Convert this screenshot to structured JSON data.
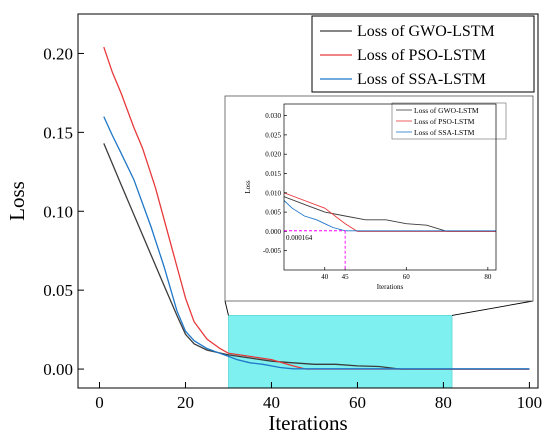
{
  "chart_data": {
    "type": "line",
    "title": "",
    "xlabel": "Iterations",
    "ylabel": "Loss",
    "xlim": [
      -5,
      102
    ],
    "ylim": [
      -0.012,
      0.225
    ],
    "x_ticks": [
      0,
      20,
      40,
      60,
      80,
      100
    ],
    "x_tick_labels": [
      "0",
      "20",
      "40",
      "60",
      "80",
      "100"
    ],
    "y_ticks": [
      0.0,
      0.05,
      0.1,
      0.15,
      0.2
    ],
    "y_tick_labels": [
      "0.00",
      "0.05",
      "0.10",
      "0.15",
      "0.20"
    ],
    "grid": false,
    "legend_position": "top-right",
    "colors": {
      "GWO": "#3c3c3c",
      "PSO": "#e8393b",
      "SSA": "#1f77c8",
      "highlight": "#7ff0f0",
      "annotation": "#ff00ff",
      "annotation_text": "#e0002a"
    },
    "series": [
      {
        "name": "Loss of GWO-LSTM",
        "color": "#3c3c3c",
        "x": [
          1,
          5,
          10,
          15,
          18,
          20,
          22,
          25,
          30,
          35,
          40,
          45,
          50,
          55,
          60,
          65,
          70,
          80,
          90,
          100
        ],
        "y": [
          0.143,
          0.117,
          0.085,
          0.053,
          0.034,
          0.022,
          0.016,
          0.012,
          0.009,
          0.007,
          0.005,
          0.004,
          0.003,
          0.003,
          0.002,
          0.0016,
          0.0,
          0.0,
          0.0,
          0.0
        ]
      },
      {
        "name": "Loss of PSO-LSTM",
        "color": "#e8393b",
        "x": [
          1,
          3,
          5,
          8,
          10,
          13,
          15,
          18,
          20,
          22,
          25,
          28,
          30,
          35,
          40,
          45,
          48,
          55,
          60,
          70,
          80,
          90,
          100
        ],
        "y": [
          0.204,
          0.188,
          0.175,
          0.153,
          0.14,
          0.115,
          0.095,
          0.065,
          0.045,
          0.03,
          0.019,
          0.013,
          0.01,
          0.008,
          0.006,
          0.002,
          0.0,
          0.0,
          0.0,
          0.0,
          0.0,
          0.0,
          0.0
        ]
      },
      {
        "name": "Loss of SSA-LSTM",
        "color": "#1f77c8",
        "x": [
          1,
          3,
          5,
          8,
          10,
          12,
          15,
          18,
          20,
          22,
          25,
          28,
          30,
          32,
          35,
          38,
          40,
          42,
          45,
          50,
          60,
          70,
          80,
          90,
          100
        ],
        "y": [
          0.16,
          0.148,
          0.137,
          0.12,
          0.105,
          0.09,
          0.065,
          0.037,
          0.024,
          0.018,
          0.013,
          0.01,
          0.008,
          0.006,
          0.004,
          0.003,
          0.002,
          0.001,
          0.000164,
          0.000164,
          0.000164,
          0.000164,
          0.000164,
          0.000164,
          0.000164
        ]
      }
    ],
    "highlight_region": {
      "x": [
        30,
        82
      ],
      "y": [
        -0.012,
        0.034
      ]
    },
    "inset": {
      "xlim": [
        30,
        82
      ],
      "ylim": [
        -0.01,
        0.033
      ],
      "x_ticks": [
        40,
        45,
        60,
        80
      ],
      "x_tick_labels": [
        "40",
        "45",
        "60",
        "80"
      ],
      "y_ticks": [
        -0.005,
        0.0,
        0.005,
        0.01,
        0.015,
        0.02,
        0.025,
        0.03
      ],
      "y_tick_labels": [
        "-0.005",
        "0.000",
        "0.005",
        "0.010",
        "0.015",
        "0.020",
        "0.025",
        "0.030"
      ],
      "xlabel": "Iterations",
      "ylabel": "Loss",
      "legend": [
        "Loss of GWO-LSTM",
        "Loss of PSO-LSTM",
        "Loss of SSA-LSTM"
      ],
      "annotation": {
        "x": 45,
        "y": 0.000164,
        "label": "0.000164"
      }
    }
  }
}
